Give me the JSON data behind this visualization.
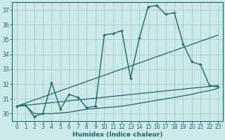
{
  "xlabel": "Humidex (Indice chaleur)",
  "background_color": "#cce8e8",
  "line_color": "#1a6b6b",
  "grid_color": "#aacece",
  "xlim": [
    -0.5,
    23.5
  ],
  "ylim": [
    29.5,
    37.5
  ],
  "yticks": [
    30,
    31,
    32,
    33,
    34,
    35,
    36,
    37
  ],
  "xticks": [
    0,
    1,
    2,
    3,
    4,
    5,
    6,
    7,
    8,
    9,
    10,
    11,
    12,
    13,
    14,
    15,
    16,
    17,
    18,
    19,
    20,
    21,
    22,
    23
  ],
  "series1_x": [
    0,
    1,
    2,
    3,
    4,
    5,
    6,
    7,
    8,
    9,
    10,
    11,
    12,
    13,
    14,
    15,
    16,
    17,
    18,
    19,
    20,
    21,
    22,
    23
  ],
  "series1_y": [
    30.5,
    30.6,
    29.8,
    30.0,
    32.1,
    30.3,
    31.3,
    31.1,
    30.4,
    30.5,
    35.3,
    35.4,
    35.6,
    32.4,
    35.1,
    37.2,
    37.3,
    36.7,
    36.8,
    34.7,
    33.5,
    33.3,
    31.9,
    31.8
  ],
  "series2_x": [
    0,
    1,
    2,
    3,
    4,
    5,
    6,
    7,
    8,
    9,
    10,
    11,
    12,
    13,
    14,
    15,
    16,
    17,
    18,
    19,
    20,
    21,
    22,
    23
  ],
  "series2_y": [
    30.5,
    30.55,
    30.0,
    30.0,
    30.0,
    30.05,
    30.1,
    30.2,
    30.3,
    30.35,
    30.4,
    30.45,
    30.5,
    30.6,
    30.7,
    30.8,
    30.9,
    31.0,
    31.1,
    31.2,
    31.3,
    31.45,
    31.55,
    31.7
  ],
  "series3_x": [
    0,
    23
  ],
  "series3_y": [
    30.5,
    35.3
  ],
  "series4_x": [
    0,
    23
  ],
  "series4_y": [
    30.5,
    31.9
  ]
}
